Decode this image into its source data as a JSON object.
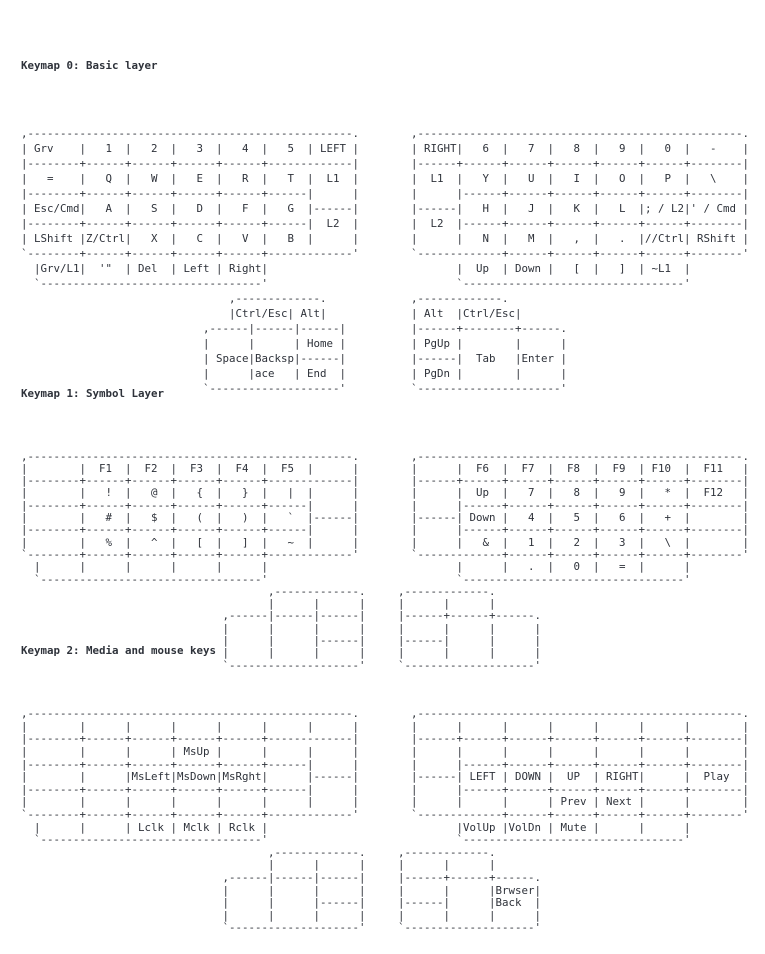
{
  "page": {
    "background_color": "#ffffff",
    "text_color": "#2e323a"
  },
  "sections": [
    {
      "heading": "Keymap 0: Basic layer",
      "art": [
        ",--------------------------------------------------.        ,--------------------------------------------------.",
        "| Grv    |   1  |   2  |   3  |   4  |   5  | LEFT |        | RIGHT|   6  |   7  |   8  |   9  |   0  |   -    |",
        "|--------+------+------+------+------+-------------|        |------+------+------+------+------+------+--------|",
        "|   =    |   Q  |   W  |   E  |   R  |   T  |  L1  |        |  L1  |   Y  |   U  |   I  |   O  |   P  |   \\    |",
        "|--------+------+------+------+------+------|      |        |      |------+------+------+------+------+--------|",
        "| Esc/Cmd|   A  |   S  |   D  |   F  |   G  |------|        |------|   H  |   J  |   K  |   L  |; / L2|' / Cmd |",
        "|--------+------+------+------+------+------|  L2  |        |  L2  |------+------+------+------+------+--------|",
        "| LShift |Z/Ctrl|   X  |   C  |   V  |   B  |      |        |      |   N  |   M  |   ,  |   .  |//Ctrl| RShift |",
        "`--------+------+------+------+------+-------------'        `-------------+------+------+------+------+--------'",
        "  |Grv/L1|  '\"  | Del  | Left | Right|                             |  Up  | Down |   [  |   ]  | ~L1  |",
        "  `----------------------------------'                             `----------------------------------'",
        "                                ,-------------.             ,-------------.",
        "                                |Ctrl/Esc| Alt|             | Alt  |Ctrl/Esc|",
        "                            ,------|------|------|          |------+--------+------.",
        "                            |      |      | Home |          | PgUp |        |      |",
        "                            | Space|Backsp|------|          |------|  Tab   |Enter |",
        "                            |      |ace   | End  |          | PgDn |        |      |",
        "                            `--------------------'          `----------------------'"
      ]
    },
    {
      "heading": "Keymap 1: Symbol Layer",
      "art": [
        ",--------------------------------------------------.        ,--------------------------------------------------.",
        "|        |  F1  |  F2  |  F3  |  F4  |  F5  |      |        |      |  F6  |  F7  |  F8  |  F9  | F10  |  F11   |",
        "|--------+------+------+------+------+-------------|        |------+------+------+------+------+------+--------|",
        "|        |   !  |   @  |   {  |   }  |   |  |      |        |      |  Up  |   7  |   8  |   9  |   *  |  F12   |",
        "|--------+------+------+------+------+------|      |        |      |------+------+------+------+------+--------|",
        "|        |   #  |   $  |   (  |   )  |   `  |------|        |------| Down |   4  |   5  |   6  |   +  |        |",
        "|--------+------+------+------+------+------|      |        |      |------+------+------+------+------+--------|",
        "|        |   %  |   ^  |   [  |   ]  |   ~  |      |        |      |   &  |   1  |   2  |   3  |   \\  |        |",
        "`--------+------+------+------+------+-------------'        `-------------+------+------+------+------+--------'",
        "  |      |      |      |      |      |                             |      |   .  |   0  |   =  |      |",
        "  `----------------------------------'                             `----------------------------------'",
        "                                      ,-------------.     ,-------------.",
        "                                      |      |      |     |      |      |",
        "                               ,------|------|------|     |------+------+------.",
        "                               |      |      |      |     |      |      |      |",
        "                               |      |      |------|     |------|      |      |",
        "                               |      |      |      |     |      |      |      |",
        "                               `--------------------'     `--------------------'"
      ]
    },
    {
      "heading": "Keymap 2: Media and mouse keys",
      "art": [
        ",--------------------------------------------------.        ,--------------------------------------------------.",
        "|        |      |      |      |      |      |      |        |      |      |      |      |      |      |        |",
        "|--------+------+------+------+------+-------------|        |------+------+------+------+------+------+--------|",
        "|        |      |      | MsUp |      |      |      |        |      |      |      |      |      |      |        |",
        "|--------+------+------+------+------+------|      |        |      |------+------+------+------+------+--------|",
        "|        |      |MsLeft|MsDown|MsRght|      |------|        |------| LEFT | DOWN |  UP  | RIGHT|      |  Play  |",
        "|--------+------+------+------+------+------|      |        |      |------+------+------+------+------+--------|",
        "|        |      |      |      |      |      |      |        |      |      |      | Prev | Next |      |        |",
        "`--------+------+------+------+------+-------------'        `-------------+------+------+------+------+--------'",
        "  |      |      | Lclk | Mclk | Rclk |                             |VolUp |VolDn | Mute |      |      |",
        "  `----------------------------------'                             `----------------------------------'",
        "                                      ,-------------.     ,-------------.",
        "                                      |      |      |     |      |      |",
        "                               ,------|------|------|     |------+------+------.",
        "                               |      |      |      |     |      |      |Brwser|",
        "                               |      |      |------|     |------|      |Back  |",
        "                               |      |      |      |     |      |      |      |",
        "                               `--------------------'     `--------------------'"
      ]
    }
  ]
}
